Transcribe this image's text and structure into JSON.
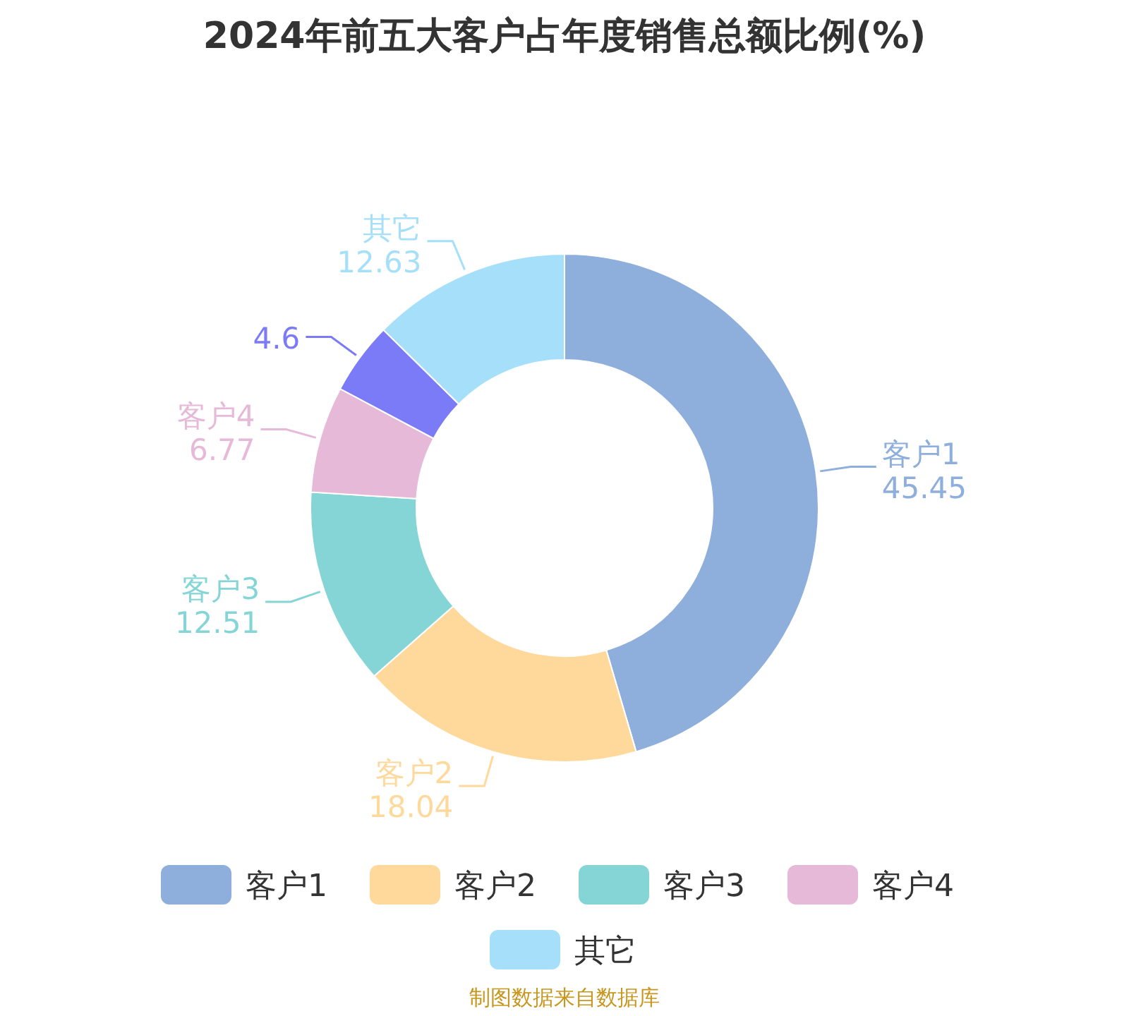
{
  "chart_data": {
    "type": "donut",
    "title": "2024年前五大客户占年度销售总额比例(%)",
    "categories": [
      "客户1",
      "客户2",
      "客户3",
      "客户4",
      null,
      "其它"
    ],
    "values": [
      45.45,
      18.04,
      12.51,
      6.77,
      4.6,
      12.63
    ],
    "colors": [
      "#8eaedb",
      "#fed99b",
      "#85d5d7",
      "#e6b9d8",
      "#7b7bf7",
      "#a5dff9"
    ],
    "data_labels": true,
    "legend": "bottom",
    "annotations": [
      "制图数据来自数据库"
    ]
  }
}
